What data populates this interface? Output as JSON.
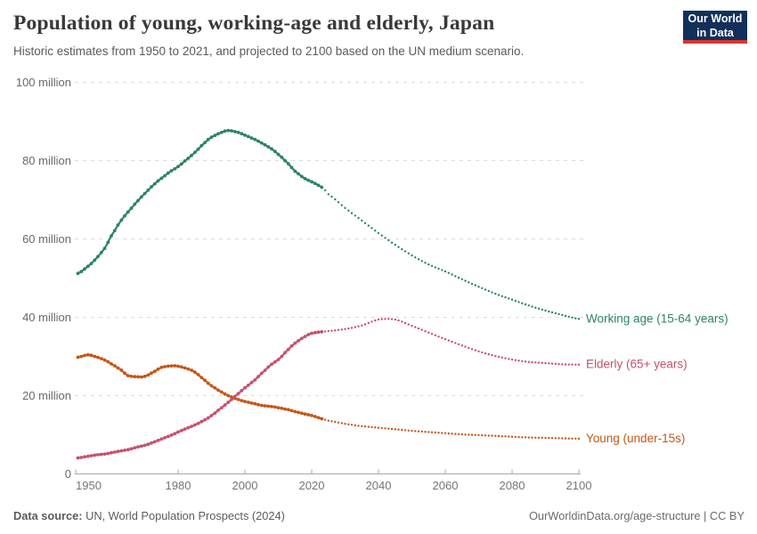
{
  "header": {
    "title": "Population of young, working-age and elderly, Japan",
    "subtitle": "Historic estimates from 1950 to 2021, and projected to 2100 based on the UN medium scenario."
  },
  "logo": {
    "line1": "Our World",
    "line2": "in Data"
  },
  "footer": {
    "source_label": "Data source:",
    "source_text": " UN, World Population Prospects (2024)",
    "credit": "OurWorldinData.org/age-structure | CC BY"
  },
  "colors": {
    "brand_navy": "#12305a",
    "brand_red": "#d8352e",
    "working_age": "#2c8465",
    "elderly": "#c5536c",
    "young": "#c4571a",
    "gridline": "#dcdcdc",
    "axis": "#a8a8a8",
    "tick_text": "#696969"
  },
  "chart_data": {
    "type": "line",
    "title": "Population of young, working-age and elderly, Japan",
    "subtitle": "Historic estimates from 1950 to 2021, and projected to 2100 based on the UN medium scenario.",
    "xlabel": "",
    "ylabel": "",
    "unit": "million people",
    "xlim": [
      1949,
      2101
    ],
    "ylim": [
      0,
      100
    ],
    "grid": "dashed-horizontal",
    "legend_position": "end-of-line-labels",
    "projection_start": 2023,
    "x": {
      "ticks": [
        1950,
        1980,
        2000,
        2020,
        2040,
        2060,
        2080,
        2100
      ]
    },
    "y": {
      "ticks": [
        {
          "v": 0,
          "label": "0"
        },
        {
          "v": 20,
          "label": "20 million"
        },
        {
          "v": 40,
          "label": "40 million"
        },
        {
          "v": 60,
          "label": "60 million"
        },
        {
          "v": 80,
          "label": "80 million"
        },
        {
          "v": 100,
          "label": "100 million"
        }
      ]
    },
    "series": [
      {
        "name": "working_age",
        "label": "Working age (15-64 years)",
        "color": "#2c8465",
        "points": [
          [
            1950,
            51.2
          ],
          [
            1953,
            53.0
          ],
          [
            1955,
            54.6
          ],
          [
            1958,
            57.6
          ],
          [
            1960,
            60.8
          ],
          [
            1963,
            64.8
          ],
          [
            1965,
            66.9
          ],
          [
            1968,
            69.8
          ],
          [
            1970,
            71.6
          ],
          [
            1973,
            74.1
          ],
          [
            1975,
            75.5
          ],
          [
            1978,
            77.4
          ],
          [
            1980,
            78.5
          ],
          [
            1983,
            80.6
          ],
          [
            1985,
            82.1
          ],
          [
            1988,
            84.6
          ],
          [
            1990,
            86.0
          ],
          [
            1993,
            87.2
          ],
          [
            1995,
            87.7
          ],
          [
            1998,
            87.2
          ],
          [
            2000,
            86.5
          ],
          [
            2003,
            85.4
          ],
          [
            2005,
            84.5
          ],
          [
            2008,
            83.0
          ],
          [
            2010,
            81.6
          ],
          [
            2013,
            79.2
          ],
          [
            2015,
            77.3
          ],
          [
            2018,
            75.4
          ],
          [
            2020,
            74.6
          ],
          [
            2023,
            73.2
          ],
          [
            2025,
            71.4
          ],
          [
            2030,
            67.9
          ],
          [
            2035,
            64.7
          ],
          [
            2040,
            61.5
          ],
          [
            2045,
            58.5
          ],
          [
            2050,
            55.8
          ],
          [
            2055,
            53.5
          ],
          [
            2060,
            51.7
          ],
          [
            2065,
            49.7
          ],
          [
            2070,
            47.8
          ],
          [
            2075,
            46.0
          ],
          [
            2080,
            44.5
          ],
          [
            2085,
            43.0
          ],
          [
            2090,
            41.7
          ],
          [
            2095,
            40.6
          ],
          [
            2100,
            39.6
          ]
        ]
      },
      {
        "name": "young",
        "label": "Young (under-15s)",
        "color": "#c4571a",
        "points": [
          [
            1950,
            29.8
          ],
          [
            1953,
            30.4
          ],
          [
            1955,
            30.0
          ],
          [
            1958,
            29.1
          ],
          [
            1960,
            28.1
          ],
          [
            1963,
            26.5
          ],
          [
            1965,
            25.1
          ],
          [
            1968,
            24.8
          ],
          [
            1970,
            24.9
          ],
          [
            1973,
            26.2
          ],
          [
            1975,
            27.2
          ],
          [
            1978,
            27.6
          ],
          [
            1980,
            27.5
          ],
          [
            1983,
            26.8
          ],
          [
            1985,
            26.0
          ],
          [
            1988,
            23.9
          ],
          [
            1990,
            22.5
          ],
          [
            1993,
            20.9
          ],
          [
            1995,
            20.0
          ],
          [
            1998,
            19.0
          ],
          [
            2000,
            18.5
          ],
          [
            2003,
            17.9
          ],
          [
            2005,
            17.5
          ],
          [
            2008,
            17.2
          ],
          [
            2010,
            16.9
          ],
          [
            2013,
            16.4
          ],
          [
            2015,
            15.9
          ],
          [
            2018,
            15.3
          ],
          [
            2020,
            14.9
          ],
          [
            2023,
            14.1
          ],
          [
            2025,
            13.6
          ],
          [
            2030,
            12.8
          ],
          [
            2035,
            12.2
          ],
          [
            2040,
            11.8
          ],
          [
            2045,
            11.4
          ],
          [
            2050,
            11.0
          ],
          [
            2055,
            10.7
          ],
          [
            2060,
            10.4
          ],
          [
            2065,
            10.1
          ],
          [
            2070,
            9.9
          ],
          [
            2075,
            9.7
          ],
          [
            2080,
            9.5
          ],
          [
            2085,
            9.3
          ],
          [
            2090,
            9.2
          ],
          [
            2095,
            9.1
          ],
          [
            2100,
            9.0
          ]
        ]
      },
      {
        "name": "elderly",
        "label": "Elderly (65+ years)",
        "color": "#c5536c",
        "points": [
          [
            1950,
            4.1
          ],
          [
            1953,
            4.5
          ],
          [
            1955,
            4.8
          ],
          [
            1958,
            5.1
          ],
          [
            1960,
            5.4
          ],
          [
            1963,
            5.9
          ],
          [
            1965,
            6.2
          ],
          [
            1968,
            6.9
          ],
          [
            1970,
            7.3
          ],
          [
            1973,
            8.2
          ],
          [
            1975,
            8.9
          ],
          [
            1978,
            9.9
          ],
          [
            1980,
            10.7
          ],
          [
            1983,
            11.8
          ],
          [
            1985,
            12.5
          ],
          [
            1988,
            13.8
          ],
          [
            1990,
            14.9
          ],
          [
            1993,
            16.9
          ],
          [
            1995,
            18.3
          ],
          [
            1998,
            20.5
          ],
          [
            2000,
            22.0
          ],
          [
            2003,
            24.0
          ],
          [
            2005,
            25.7
          ],
          [
            2008,
            28.0
          ],
          [
            2010,
            29.2
          ],
          [
            2013,
            31.8
          ],
          [
            2015,
            33.4
          ],
          [
            2018,
            35.1
          ],
          [
            2020,
            35.9
          ],
          [
            2023,
            36.3
          ],
          [
            2025,
            36.5
          ],
          [
            2030,
            37.0
          ],
          [
            2035,
            37.9
          ],
          [
            2040,
            39.4
          ],
          [
            2045,
            39.4
          ],
          [
            2050,
            37.8
          ],
          [
            2055,
            36.1
          ],
          [
            2060,
            34.4
          ],
          [
            2065,
            32.8
          ],
          [
            2070,
            31.3
          ],
          [
            2075,
            30.1
          ],
          [
            2080,
            29.2
          ],
          [
            2085,
            28.6
          ],
          [
            2090,
            28.3
          ],
          [
            2095,
            28.0
          ],
          [
            2100,
            27.9
          ]
        ]
      }
    ]
  }
}
